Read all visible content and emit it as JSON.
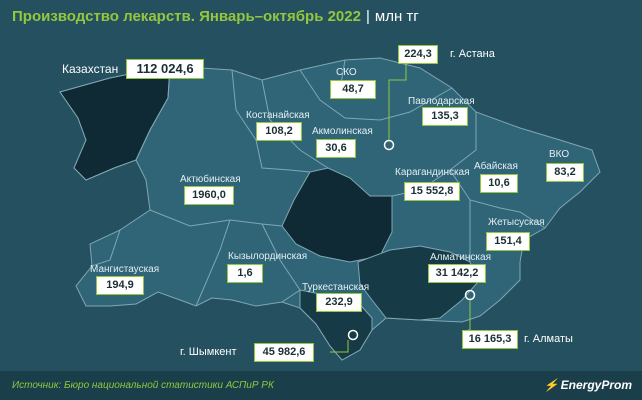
{
  "header": {
    "title": "Производство лекарств. Январь–октябрь 2022",
    "separator": "|",
    "unit": "млн тг"
  },
  "total": {
    "label": "Казахстан",
    "value": "112 024,6"
  },
  "regions": [
    {
      "name": "СКО",
      "value": "48,7"
    },
    {
      "name": "Павлодарская",
      "value": "135,3"
    },
    {
      "name": "Костанайская",
      "value": "108,2"
    },
    {
      "name": "Акмолинская",
      "value": "30,6"
    },
    {
      "name": "Актюбинская",
      "value": "1960,0"
    },
    {
      "name": "Карагандинская",
      "value": "15 552,8"
    },
    {
      "name": "Абайская",
      "value": "10,6"
    },
    {
      "name": "ВКО",
      "value": "83,2"
    },
    {
      "name": "Жетысуская",
      "value": "151,4"
    },
    {
      "name": "Кызылординская",
      "value": "1,6"
    },
    {
      "name": "Мангистауская",
      "value": "194,9"
    },
    {
      "name": "Туркестанская",
      "value": "232,9"
    },
    {
      "name": "Алматинская",
      "value": "31 142,2"
    }
  ],
  "cities": [
    {
      "name": "г. Астана",
      "value": "224,3"
    },
    {
      "name": "г. Шымкент",
      "value": "45 982,6"
    },
    {
      "name": "г. Алматы",
      "value": "16 165,3"
    }
  ],
  "colors": {
    "background": "#24505f",
    "accent": "#93c83e",
    "region_fill": "#2f6577",
    "region_dark": "#173a47",
    "region_darkest": "#0f2a34",
    "border": "#7fa7b4"
  },
  "footer": {
    "source": "Источник: Бюро национальной статистики АСПиР РК",
    "logo": "EnergyProm",
    "logo_icon": "energyprom-logo-icon"
  }
}
